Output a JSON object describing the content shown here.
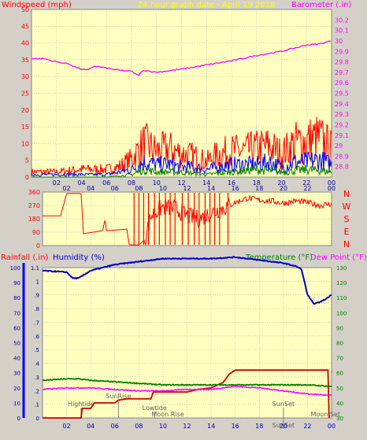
{
  "header": {
    "left": "Windspeed (mph)",
    "center": "24 hour graph date - April 19 2018",
    "right": "Barometer (.in)"
  },
  "compass": [
    "N",
    "W",
    "S",
    "E",
    "N"
  ],
  "lower_header": {
    "rainfall": "Rainfall (.in)",
    "humidity": "Humidity (%)",
    "temperature": "Temperature (°F)",
    "dewpoint": "Dew Point (°F)"
  },
  "colors": {
    "background": "#d4d0c8",
    "plot_bg": "#ffffc0",
    "grid": "#9ab2c2",
    "wind_gust": "#ff0000",
    "wind_avg": "#0000ff",
    "wind_low": "#008000",
    "barometer": "#ff00ff",
    "direction": "#ff0000",
    "humidity": "#0000cc",
    "temperature": "#008000",
    "dewpoint": "#ff00ff",
    "rainfall": "#cc0000",
    "title_yellow": "#ffff00",
    "left_axis_red": "#ff0000"
  },
  "chart_data": [
    {
      "type": "line",
      "name": "wind-barometer",
      "x_ticks": [
        "02",
        "04",
        "06",
        "08",
        "10",
        "12",
        "14",
        "16",
        "18",
        "20",
        "22",
        "00"
      ],
      "y_left_ticks": [
        "0",
        "5",
        "10",
        "15",
        "20",
        "25",
        "30",
        "35",
        "40",
        "45",
        "50"
      ],
      "y_right_ticks": [
        "28.8",
        "28.9",
        "29",
        "29.1",
        "29.2",
        "29.3",
        "29.4",
        "29.5",
        "29.6",
        "29.7",
        "29.8",
        "29.9",
        "30",
        "30.1",
        "30.2"
      ],
      "ylim_left": [
        0,
        50
      ],
      "ylim_right": [
        28.7,
        30.3
      ],
      "xlim_hours": [
        0,
        24
      ],
      "barometer_points": [
        [
          0,
          29.83
        ],
        [
          1,
          29.83
        ],
        [
          2,
          29.8
        ],
        [
          3,
          29.78
        ],
        [
          3.5,
          29.75
        ],
        [
          4,
          29.73
        ],
        [
          4.5,
          29.72
        ],
        [
          5,
          29.76
        ],
        [
          6,
          29.74
        ],
        [
          7,
          29.72
        ],
        [
          8,
          29.71
        ],
        [
          8.5,
          29.67
        ],
        [
          9,
          29.72
        ],
        [
          10,
          29.7
        ],
        [
          12,
          29.73
        ],
        [
          14,
          29.77
        ],
        [
          16,
          29.81
        ],
        [
          18,
          29.86
        ],
        [
          20,
          29.9
        ],
        [
          22,
          29.96
        ],
        [
          23,
          29.97
        ],
        [
          24,
          30.0
        ]
      ],
      "wind_gust_envelope": [
        [
          0,
          2
        ],
        [
          2,
          2
        ],
        [
          4,
          3
        ],
        [
          6,
          3
        ],
        [
          7,
          4
        ],
        [
          8,
          7
        ],
        [
          8.5,
          10
        ],
        [
          9,
          13
        ],
        [
          10,
          10
        ],
        [
          11,
          11
        ],
        [
          12,
          9
        ],
        [
          13,
          8
        ],
        [
          14,
          6
        ],
        [
          15,
          9
        ],
        [
          16,
          10
        ],
        [
          17,
          10
        ],
        [
          18,
          11
        ],
        [
          19,
          12
        ],
        [
          20,
          9
        ],
        [
          21,
          13
        ],
        [
          22,
          14
        ],
        [
          23,
          15
        ],
        [
          24,
          11
        ]
      ],
      "wind_avg_envelope": [
        [
          0,
          1
        ],
        [
          4,
          1
        ],
        [
          6,
          1
        ],
        [
          7,
          2
        ],
        [
          8,
          3
        ],
        [
          9,
          6
        ],
        [
          10,
          5
        ],
        [
          11,
          5
        ],
        [
          12,
          4
        ],
        [
          13,
          4
        ],
        [
          14,
          3
        ],
        [
          15,
          4
        ],
        [
          16,
          5
        ],
        [
          17,
          5
        ],
        [
          18,
          5
        ],
        [
          19,
          6
        ],
        [
          20,
          4
        ],
        [
          21,
          6
        ],
        [
          22,
          6
        ],
        [
          23,
          7
        ],
        [
          24,
          5
        ]
      ],
      "wind_low_envelope": [
        [
          0,
          0
        ],
        [
          6,
          0
        ],
        [
          8,
          1
        ],
        [
          9,
          3
        ],
        [
          10,
          2
        ],
        [
          12,
          2
        ],
        [
          14,
          1
        ],
        [
          16,
          2
        ],
        [
          18,
          3
        ],
        [
          20,
          2
        ],
        [
          22,
          3
        ],
        [
          24,
          2
        ]
      ]
    },
    {
      "type": "line",
      "name": "wind-direction",
      "x_ticks": [
        "02",
        "04",
        "06",
        "08",
        "10",
        "12",
        "14",
        "16",
        "18",
        "20",
        "22",
        "00"
      ],
      "y_ticks": [
        "0",
        "90",
        "180",
        "270",
        "360"
      ],
      "ylim": [
        0,
        360
      ],
      "direction_points": [
        [
          0,
          200
        ],
        [
          1.5,
          200
        ],
        [
          2,
          350
        ],
        [
          3.2,
          350
        ],
        [
          3.4,
          80
        ],
        [
          5,
          100
        ],
        [
          5.2,
          180
        ],
        [
          5.3,
          100
        ],
        [
          7,
          110
        ],
        [
          7.2,
          5
        ],
        [
          8,
          5
        ],
        [
          8.5,
          40
        ],
        [
          9,
          200
        ],
        [
          10,
          260
        ],
        [
          11,
          250
        ],
        [
          12,
          200
        ],
        [
          13,
          180
        ],
        [
          14,
          220
        ],
        [
          15,
          250
        ],
        [
          16,
          290
        ],
        [
          17,
          320
        ],
        [
          18,
          305
        ],
        [
          19,
          300
        ],
        [
          20,
          285
        ],
        [
          21,
          300
        ],
        [
          22,
          290
        ],
        [
          23,
          270
        ],
        [
          24,
          280
        ]
      ],
      "spikes_hours": [
        7.6,
        8.0,
        8.4,
        8.8,
        9.3,
        9.7,
        10.2,
        10.6,
        11.0,
        11.6,
        12.1,
        12.6,
        13.0,
        13.5,
        13.9,
        14.3,
        14.7,
        15.4
      ]
    },
    {
      "type": "line",
      "name": "rain-humidity-temperature",
      "x_ticks": [
        "02",
        "04",
        "06",
        "08",
        "10",
        "12",
        "14",
        "16",
        "18",
        "20",
        "22",
        "00"
      ],
      "y_left_ticks": [
        "0",
        "10",
        "20",
        "30",
        "40",
        "50",
        "60",
        "70",
        "80",
        "90",
        "100"
      ],
      "y_left2_ticks": [
        "0",
        ".1",
        ".2",
        ".3",
        ".4",
        ".5",
        ".6",
        ".7",
        ".8",
        ".9",
        "1",
        "1.1"
      ],
      "y_right_ticks": [
        "30",
        "40",
        "50",
        "60",
        "70",
        "80",
        "90",
        "100",
        "110",
        "120",
        "130"
      ],
      "ylim_humidity": [
        0,
        100
      ],
      "ylim_rain": [
        0,
        1.1
      ],
      "ylim_temp": [
        30,
        130
      ],
      "humidity_series": [
        [
          0,
          98
        ],
        [
          2,
          97
        ],
        [
          2.5,
          93
        ],
        [
          3,
          93
        ],
        [
          4,
          98
        ],
        [
          6,
          102
        ],
        [
          8,
          104
        ],
        [
          10,
          106
        ],
        [
          12,
          106
        ],
        [
          14,
          106
        ],
        [
          16,
          107
        ],
        [
          18,
          105
        ],
        [
          20,
          103
        ],
        [
          21,
          101
        ],
        [
          21.5,
          99
        ],
        [
          22,
          82
        ],
        [
          22.5,
          76
        ],
        [
          23,
          77
        ],
        [
          23.5,
          79
        ],
        [
          24,
          82
        ]
      ],
      "temperature_series": [
        [
          0,
          55
        ],
        [
          2,
          56
        ],
        [
          3,
          56
        ],
        [
          4,
          55
        ],
        [
          6,
          54
        ],
        [
          8,
          53
        ],
        [
          10,
          52
        ],
        [
          12,
          52
        ],
        [
          14,
          52
        ],
        [
          16,
          52
        ],
        [
          18,
          52
        ],
        [
          20,
          52
        ],
        [
          22,
          52
        ],
        [
          24,
          51
        ]
      ],
      "dewpoint_series": [
        [
          0,
          49
        ],
        [
          2,
          50
        ],
        [
          4,
          50
        ],
        [
          6,
          49
        ],
        [
          8,
          48
        ],
        [
          10,
          48
        ],
        [
          12,
          49
        ],
        [
          14,
          49
        ],
        [
          15,
          50
        ],
        [
          16,
          51
        ],
        [
          18,
          50
        ],
        [
          20,
          48
        ],
        [
          22,
          46
        ],
        [
          24,
          45
        ]
      ],
      "rainfall_series": [
        [
          0,
          0
        ],
        [
          2,
          0
        ],
        [
          3.2,
          0
        ],
        [
          3.3,
          0.07
        ],
        [
          4,
          0.07
        ],
        [
          4.3,
          0.11
        ],
        [
          6,
          0.11
        ],
        [
          6.3,
          0.13
        ],
        [
          7,
          0.14
        ],
        [
          9,
          0.14
        ],
        [
          9.2,
          0.19
        ],
        [
          11,
          0.19
        ],
        [
          12,
          0.19
        ],
        [
          13,
          0.21
        ],
        [
          14,
          0.22
        ],
        [
          15,
          0.26
        ],
        [
          15.5,
          0.32
        ],
        [
          16,
          0.35
        ],
        [
          20,
          0.35
        ],
        [
          22,
          0.35
        ],
        [
          23,
          0.35
        ],
        [
          23.7,
          0.35
        ],
        [
          23.8,
          0.0
        ]
      ],
      "annotations": [
        {
          "label": "Hightide",
          "hour": 3.2,
          "row": 1
        },
        {
          "label": "SunRise",
          "hour": 6.3,
          "row": 0
        },
        {
          "label": "Lowtide",
          "hour": 9.3,
          "row": 2
        },
        {
          "label": "Moon Rise",
          "hour": 10.4,
          "row": 3
        },
        {
          "label": "SunSet",
          "hour": 20,
          "row": 1
        },
        {
          "label": "SunSet",
          "hour": 20,
          "row": 4
        },
        {
          "label": "Moon Set",
          "hour": 23.5,
          "row": 3
        }
      ]
    }
  ]
}
